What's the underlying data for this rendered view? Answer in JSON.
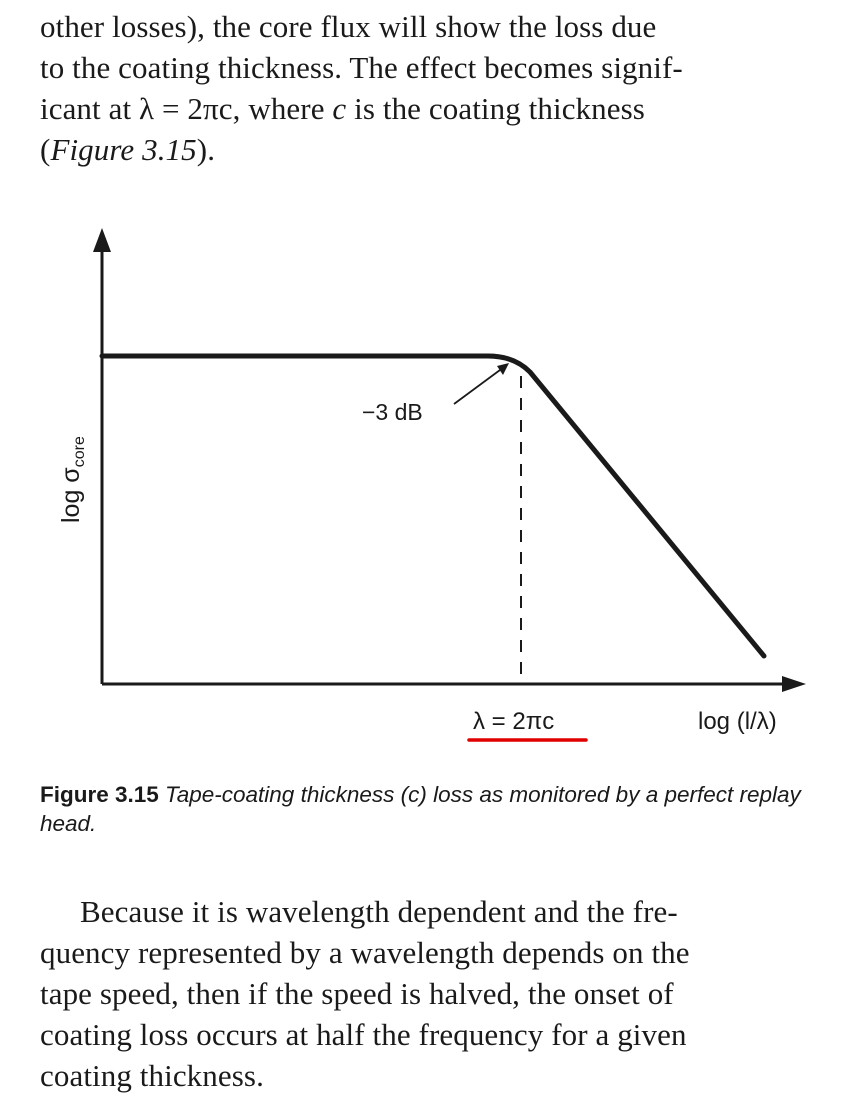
{
  "top_paragraph": {
    "line1": "other losses), the core flux will show the loss due",
    "line2": "to the coating thickness. The effect becomes signif-",
    "line3_prefix": "icant at λ = 2πc, where ",
    "line3_var": "c",
    "line3_suffix": " is the coating thickness",
    "line4_open": "(",
    "line4_ref": "Figure 3.15",
    "line4_close": ")."
  },
  "figure": {
    "y_axis_label": "log σ",
    "y_axis_subscript": "core",
    "x_axis_label": "log (l/λ)",
    "annotation": "−3 dB",
    "corner_marker_label": "λ = 2πc",
    "highlight_color": "#e00000"
  },
  "caption": {
    "number": "Figure 3.15",
    "text": " Tape-coating thickness (c) loss as monitored by a perfect replay head."
  },
  "bottom_paragraph": {
    "line1": "Because it is wavelength dependent and the fre-",
    "line2": "quency represented by a wavelength depends on the",
    "line3": "tape speed, then if the speed is halved, the onset of",
    "line4": "coating loss occurs at half the frequency for a given",
    "line5": "coating thickness."
  }
}
